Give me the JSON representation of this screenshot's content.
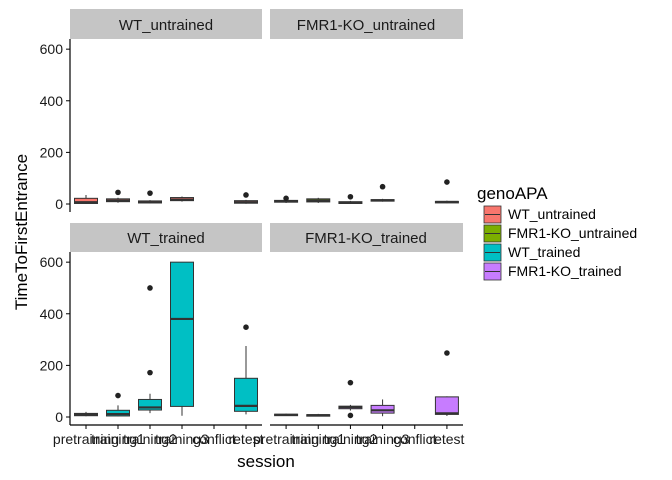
{
  "chart_data": {
    "type": "boxplot",
    "xlabel": "session",
    "ylabel": "TimeToFirstEntrance",
    "ylim": [
      0,
      620
    ],
    "yticks": [
      0,
      200,
      400,
      600
    ],
    "categories": [
      "pretraining",
      "training1",
      "training2",
      "training3",
      "conflict",
      "retest"
    ],
    "legend": {
      "title": "genoAPA",
      "items": [
        {
          "label": "WT_untrained",
          "color": "#F8766D"
        },
        {
          "label": "FMR1-KO_untrained",
          "color": "#7CAE00"
        },
        {
          "label": "WT_trained",
          "color": "#00BFC4"
        },
        {
          "label": "FMR1-KO_trained",
          "color": "#C77CFF"
        }
      ]
    },
    "panels": [
      {
        "title": "WT_untrained",
        "color": "#F8766D",
        "boxes": [
          {
            "category": "pretraining",
            "min": 0,
            "q1": 2,
            "median": 7,
            "q3": 22,
            "max": 35,
            "outliers": []
          },
          {
            "category": "training1",
            "min": 5,
            "q1": 9,
            "median": 13,
            "q3": 20,
            "max": 24,
            "outliers": [
              45
            ]
          },
          {
            "category": "training2",
            "min": 2,
            "q1": 4,
            "median": 7,
            "q3": 12,
            "max": 15,
            "outliers": [
              42
            ]
          },
          {
            "category": "training3",
            "min": 9,
            "q1": 13,
            "median": 17,
            "q3": 25,
            "max": 29,
            "outliers": []
          },
          {
            "category": "retest",
            "min": 1,
            "q1": 3,
            "median": 7,
            "q3": 13,
            "max": 16,
            "outliers": [
              35
            ]
          }
        ]
      },
      {
        "title": "FMR1-KO_untrained",
        "color": "#7CAE00",
        "boxes": [
          {
            "category": "pretraining",
            "min": 4,
            "q1": 7,
            "median": 10,
            "q3": 14,
            "max": 17,
            "outliers": [
              22
            ]
          },
          {
            "category": "training1",
            "min": 4,
            "q1": 8,
            "median": 13,
            "q3": 20,
            "max": 24,
            "outliers": []
          },
          {
            "category": "training2",
            "min": 0,
            "q1": 2,
            "median": 5,
            "q3": 9,
            "max": 12,
            "outliers": [
              28
            ]
          },
          {
            "category": "training3",
            "min": 9,
            "q1": 11,
            "median": 14,
            "q3": 17,
            "max": 20,
            "outliers": [
              67
            ]
          },
          {
            "category": "retest",
            "min": 3,
            "q1": 5,
            "median": 8,
            "q3": 10,
            "max": 13,
            "outliers": [
              85
            ]
          }
        ]
      },
      {
        "title": "WT_trained",
        "color": "#00BFC4",
        "boxes": [
          {
            "category": "pretraining",
            "min": 3,
            "q1": 5,
            "median": 10,
            "q3": 14,
            "max": 20,
            "outliers": []
          },
          {
            "category": "training1",
            "min": 2,
            "q1": 4,
            "median": 11,
            "q3": 26,
            "max": 45,
            "outliers": [
              83
            ]
          },
          {
            "category": "training2",
            "min": 15,
            "q1": 27,
            "median": 37,
            "q3": 68,
            "max": 90,
            "outliers": [
              172,
              500
            ]
          },
          {
            "category": "training3",
            "min": 5,
            "q1": 41,
            "median": 380,
            "q3": 600,
            "max": 600,
            "outliers": []
          },
          {
            "category": "retest",
            "min": 10,
            "q1": 22,
            "median": 43,
            "q3": 150,
            "max": 275,
            "outliers": [
              348
            ]
          }
        ]
      },
      {
        "title": "FMR1-KO_trained",
        "color": "#C77CFF",
        "boxes": [
          {
            "category": "pretraining",
            "min": 4,
            "q1": 6,
            "median": 8,
            "q3": 11,
            "max": 13,
            "outliers": []
          },
          {
            "category": "training1",
            "min": 3,
            "q1": 4,
            "median": 7,
            "q3": 9,
            "max": 12,
            "outliers": []
          },
          {
            "category": "training2",
            "min": 25,
            "q1": 32,
            "median": 38,
            "q3": 42,
            "max": 47,
            "outliers": [
              6,
              133
            ]
          },
          {
            "category": "training3",
            "min": 3,
            "q1": 15,
            "median": 26,
            "q3": 45,
            "max": 68,
            "outliers": []
          },
          {
            "category": "retest",
            "min": 4,
            "q1": 10,
            "median": 14,
            "q3": 78,
            "max": 80,
            "outliers": [
              248
            ]
          }
        ]
      }
    ]
  }
}
